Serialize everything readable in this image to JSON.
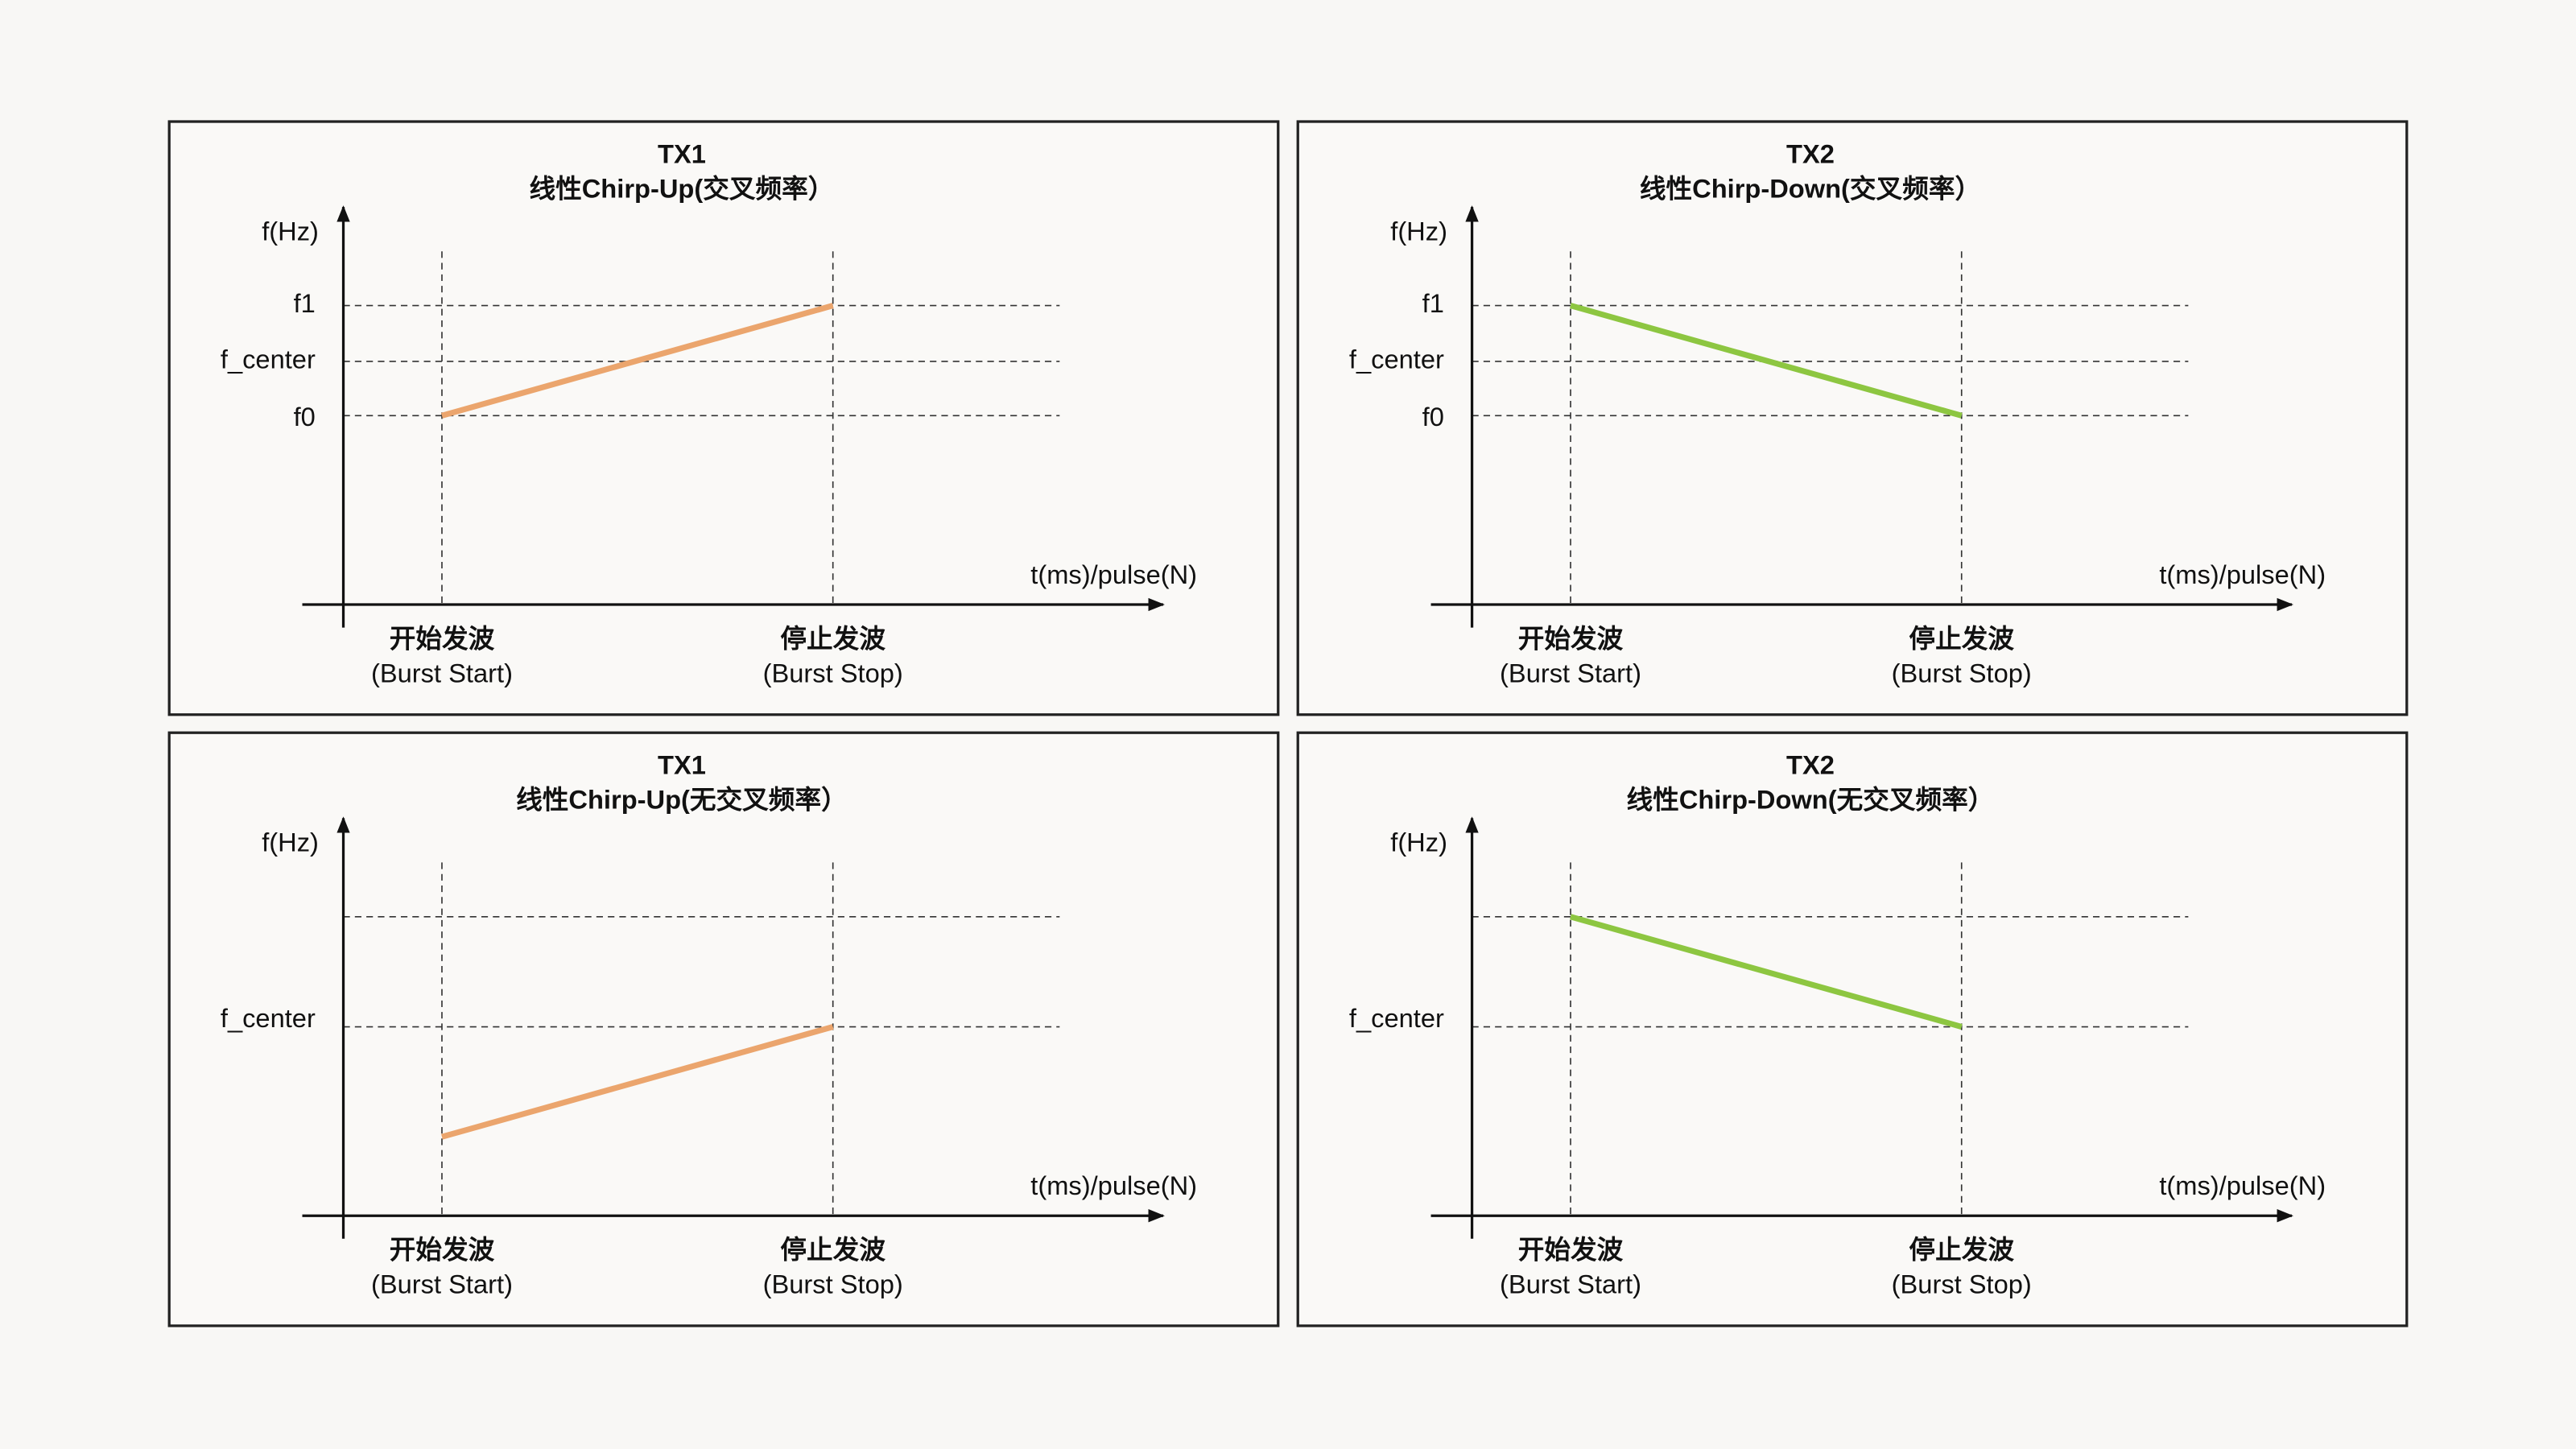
{
  "panels": [
    {
      "title": "TX1",
      "subtitle": "线性Chirp-Up(交叉频率）",
      "color": "#eba56d",
      "y_axis_label": "f(Hz)",
      "x_axis_label": "t(ms)/pulse(N)",
      "y_levels": [
        "f1",
        "f_center",
        "f0"
      ],
      "x_labels": [
        {
          "name": "开始发波",
          "detail": "(Burst Start)"
        },
        {
          "name": "停止发波",
          "detail": "(Burst Stop)"
        }
      ]
    },
    {
      "title": "TX2",
      "subtitle": "线性Chirp-Down(交叉频率）",
      "color": "#8dc641",
      "y_axis_label": "f(Hz)",
      "x_axis_label": "t(ms)/pulse(N)",
      "y_levels": [
        "f1",
        "f_center",
        "f0"
      ],
      "x_labels": [
        {
          "name": "开始发波",
          "detail": "(Burst Start)"
        },
        {
          "name": "停止发波",
          "detail": "(Burst Stop)"
        }
      ]
    },
    {
      "title": "TX1",
      "subtitle": "线性Chirp-Up(无交叉频率）",
      "color": "#eba56d",
      "y_axis_label": "f(Hz)",
      "x_axis_label": "t(ms)/pulse(N)",
      "y_levels": [
        "f_center"
      ],
      "x_labels": [
        {
          "name": "开始发波",
          "detail": "(Burst Start)"
        },
        {
          "name": "停止发波",
          "detail": "(Burst Stop)"
        }
      ]
    },
    {
      "title": "TX2",
      "subtitle": "线性Chirp-Down(无交叉频率）",
      "color": "#8dc641",
      "y_axis_label": "f(Hz)",
      "x_axis_label": "t(ms)/pulse(N)",
      "y_levels": [
        "f_center"
      ],
      "x_labels": [
        {
          "name": "开始发波",
          "detail": "(Burst Start)"
        },
        {
          "name": "停止发波",
          "detail": "(Burst Stop)"
        }
      ]
    }
  ]
}
